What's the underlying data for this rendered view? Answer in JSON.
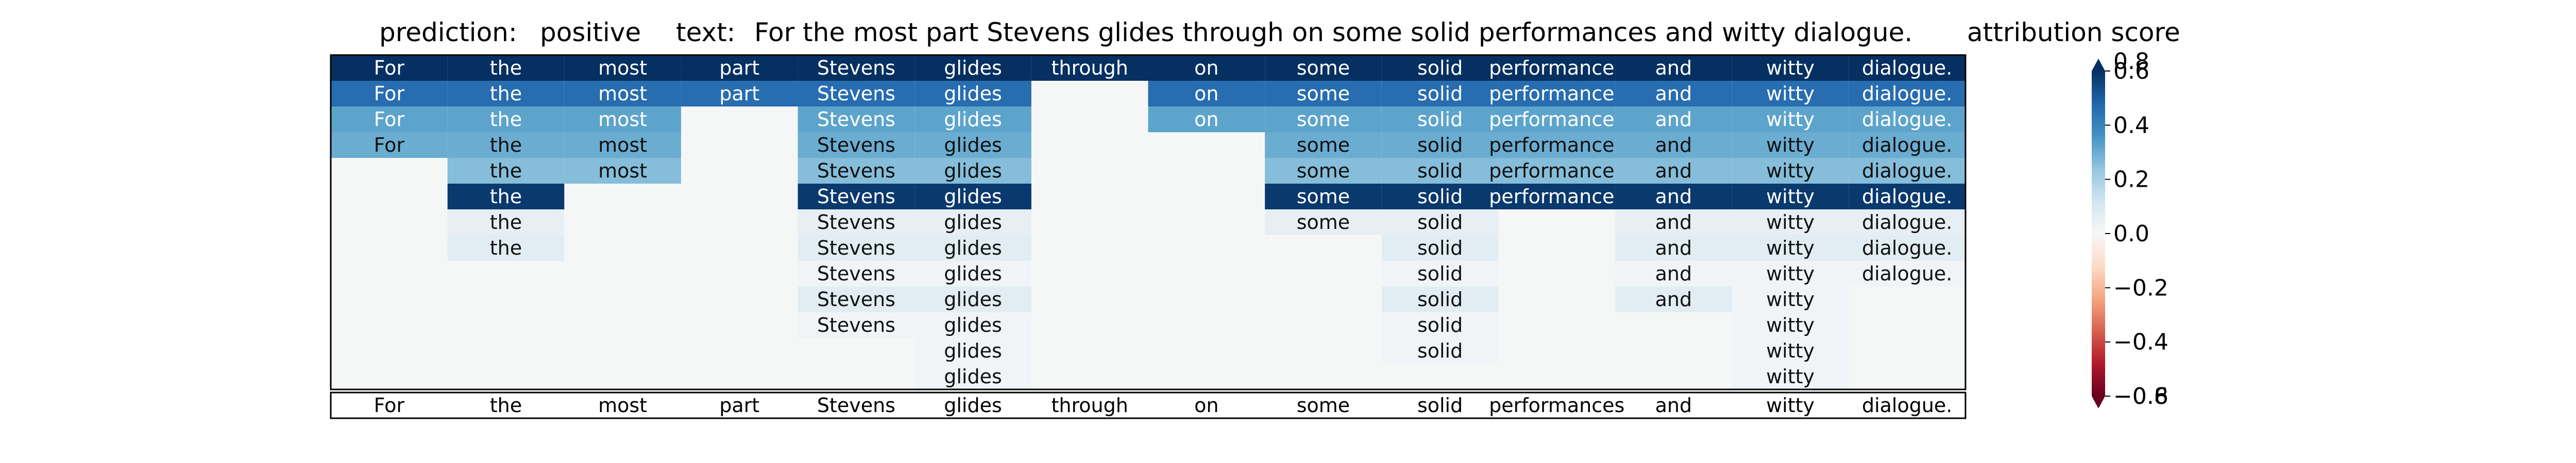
{
  "header": {
    "prediction_label": "prediction:",
    "prediction_value": "positive",
    "text_label": "text:",
    "text_value": "For the most part Stevens glides through on some solid performances and witty dialogue.",
    "colorbar_title": "attribution score"
  },
  "chart_data": {
    "type": "heatmap",
    "tokens": [
      "For",
      "the",
      "most",
      "part",
      "Stevens",
      "glides",
      "through",
      "on",
      "some",
      "solid",
      "performances",
      "and",
      "witty",
      "dialogue."
    ],
    "rows": [
      [
        0.8,
        0.8,
        0.8,
        0.8,
        0.8,
        0.8,
        0.8,
        0.8,
        0.8,
        0.8,
        0.8,
        0.8,
        0.8,
        0.8
      ],
      [
        0.46,
        0.46,
        0.46,
        0.46,
        0.46,
        0.46,
        null,
        0.46,
        0.46,
        0.46,
        0.46,
        0.46,
        0.46,
        0.46
      ],
      [
        0.32,
        0.32,
        0.32,
        null,
        0.32,
        0.32,
        null,
        0.32,
        0.32,
        0.32,
        0.32,
        0.32,
        0.32,
        0.32
      ],
      [
        0.3,
        0.3,
        0.3,
        null,
        0.3,
        0.3,
        null,
        null,
        0.3,
        0.3,
        0.3,
        0.3,
        0.3,
        0.3
      ],
      [
        null,
        0.26,
        0.26,
        null,
        0.26,
        0.26,
        null,
        null,
        0.26,
        0.26,
        0.26,
        0.26,
        0.26,
        0.26
      ],
      [
        null,
        0.58,
        null,
        null,
        0.58,
        0.58,
        null,
        null,
        0.58,
        0.58,
        0.58,
        0.58,
        0.58,
        0.58
      ],
      [
        null,
        0.05,
        null,
        null,
        0.05,
        0.05,
        null,
        null,
        0.05,
        0.05,
        null,
        0.05,
        0.05,
        0.05
      ],
      [
        null,
        0.07,
        null,
        null,
        0.07,
        0.07,
        null,
        null,
        null,
        0.07,
        null,
        0.07,
        0.07,
        0.07
      ],
      [
        null,
        null,
        null,
        null,
        0.02,
        0.02,
        null,
        null,
        null,
        0.02,
        null,
        0.02,
        0.02,
        0.02
      ],
      [
        null,
        null,
        null,
        null,
        0.07,
        0.07,
        null,
        null,
        null,
        0.07,
        null,
        0.07,
        0.02,
        null
      ],
      [
        null,
        null,
        null,
        null,
        0.02,
        0.02,
        null,
        null,
        null,
        0.02,
        null,
        null,
        0.02,
        null
      ],
      [
        null,
        null,
        null,
        null,
        null,
        0.02,
        null,
        null,
        null,
        0.02,
        null,
        null,
        0.02,
        null
      ],
      [
        null,
        null,
        null,
        null,
        null,
        0.02,
        null,
        null,
        null,
        null,
        null,
        null,
        0.02,
        null
      ]
    ],
    "baseline_row": [
      "For",
      "the",
      "most",
      "part",
      "Stevens",
      "glides",
      "through",
      "on",
      "some",
      "solid",
      "performances",
      "and",
      "witty",
      "dialogue."
    ],
    "colorbar": {
      "colormap": "RdBu",
      "vmin": -0.6,
      "vmax": 0.6,
      "extend": "both",
      "ticks": [
        -0.6,
        -0.4,
        -0.2,
        0.0,
        0.2,
        0.4,
        0.6
      ],
      "tick_labels": [
        "−0.6",
        "−0.4",
        "−0.2",
        "0.0",
        "0.2",
        "0.4",
        "0.6"
      ],
      "extend_labels": [
        "−0.8",
        "0.8"
      ]
    },
    "background_color": "#f5f7f7"
  }
}
